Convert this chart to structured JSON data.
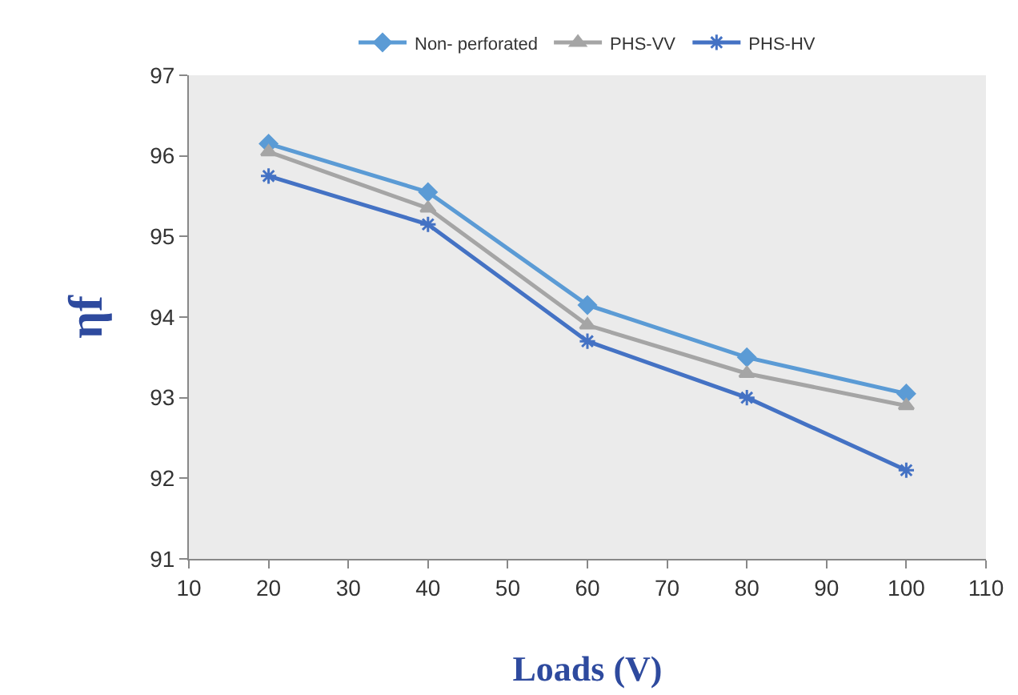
{
  "chart_data": {
    "type": "line",
    "xlabel": "Loads (V)",
    "ylabel": "ηf",
    "x": [
      20,
      40,
      60,
      80,
      100
    ],
    "series": [
      {
        "name": "Non- perforated",
        "color": "#5b9bd5",
        "marker": "diamond",
        "values": [
          96.15,
          95.55,
          94.15,
          93.5,
          93.05
        ]
      },
      {
        "name": "PHS-VV",
        "color": "#a5a5a5",
        "marker": "triangle",
        "values": [
          96.05,
          95.35,
          93.9,
          93.3,
          92.9
        ]
      },
      {
        "name": "PHS-HV",
        "color": "#4472c4",
        "marker": "cross",
        "values": [
          95.75,
          95.15,
          93.7,
          93.0,
          92.1
        ]
      }
    ],
    "xlim": [
      10,
      110
    ],
    "xticks": [
      10,
      20,
      30,
      40,
      50,
      60,
      70,
      80,
      90,
      100,
      110
    ],
    "ylim": [
      91,
      97
    ],
    "yticks": [
      91,
      92,
      93,
      94,
      95,
      96,
      97
    ],
    "grid": false,
    "legend": "top"
  }
}
